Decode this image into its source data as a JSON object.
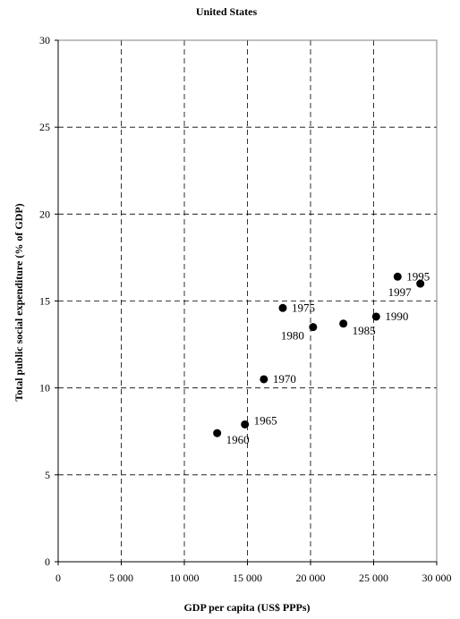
{
  "chart_data": {
    "type": "scatter",
    "title": "United States",
    "xlabel": "GDP per capita (US$ PPPs)",
    "ylabel": "Total public social expenditure (% of GDP)",
    "xlim": [
      0,
      30000
    ],
    "ylim": [
      0,
      30
    ],
    "x_ticks": [
      0,
      5000,
      10000,
      15000,
      20000,
      25000,
      30000
    ],
    "x_tick_labels": [
      "0",
      "5 000",
      "10 000",
      "15 000",
      "20 000",
      "25 000",
      "30 000"
    ],
    "y_ticks": [
      0,
      5,
      10,
      15,
      20,
      25,
      30
    ],
    "y_tick_labels": [
      "0",
      "5",
      "10",
      "15",
      "20",
      "25",
      "30"
    ],
    "grid": true,
    "marker_color": "#000000",
    "points": [
      {
        "label": "1960",
        "x": 12600,
        "y": 7.4,
        "label_side": "right-below"
      },
      {
        "label": "1965",
        "x": 14800,
        "y": 7.9,
        "label_side": "right-above"
      },
      {
        "label": "1970",
        "x": 16300,
        "y": 10.5,
        "label_side": "right"
      },
      {
        "label": "1975",
        "x": 17800,
        "y": 14.6,
        "label_side": "right"
      },
      {
        "label": "1980",
        "x": 20200,
        "y": 13.5,
        "label_side": "left-below"
      },
      {
        "label": "1985",
        "x": 22600,
        "y": 13.7,
        "label_side": "right-below"
      },
      {
        "label": "1990",
        "x": 25200,
        "y": 14.1,
        "label_side": "right"
      },
      {
        "label": "1995",
        "x": 26900,
        "y": 16.4,
        "label_side": "right"
      },
      {
        "label": "1997",
        "x": 28700,
        "y": 16.0,
        "label_side": "left-below"
      }
    ]
  }
}
